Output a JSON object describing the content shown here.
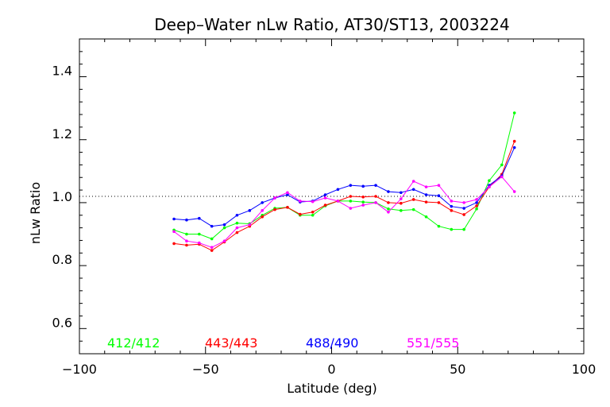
{
  "chart_data": {
    "type": "line",
    "title": "Deep–Water nLw Ratio, AT30/ST13, 2003224",
    "xlabel": "Latitude (deg)",
    "ylabel": "nLw Ratio",
    "xlim": [
      -100,
      100
    ],
    "ylim": [
      0.5,
      1.5
    ],
    "xticks": [
      -100,
      -50,
      0,
      50,
      100
    ],
    "xtick_labels": [
      "−100",
      "−50",
      "0",
      "50",
      "100"
    ],
    "yticks": [
      0.6,
      0.8,
      1.0,
      1.2,
      1.4
    ],
    "ytick_labels": [
      "0.6",
      "0.8",
      "1.0",
      "1.2",
      "1.4"
    ],
    "reference_line": 1.0,
    "legend_placement": "bottom",
    "series": [
      {
        "name": "412/412",
        "color": "#00ff00",
        "x": [
          -62.5,
          -57.5,
          -52.5,
          -47.5,
          -42.5,
          -37.5,
          -32.5,
          -27.5,
          -22.5,
          -17.5,
          -12.5,
          -7.5,
          -2.5,
          2.5,
          7.5,
          12.5,
          17.5,
          22.5,
          27.5,
          32.5,
          37.5,
          42.5,
          47.5,
          52.5,
          57.5,
          62.5,
          67.5,
          72.5
        ],
        "y": [
          0.893,
          0.88,
          0.88,
          0.865,
          0.9,
          0.915,
          0.913,
          0.94,
          0.962,
          0.965,
          0.94,
          0.94,
          0.97,
          0.985,
          0.985,
          0.982,
          0.98,
          0.96,
          0.955,
          0.958,
          0.935,
          0.905,
          0.895,
          0.895,
          0.96,
          1.05,
          1.1,
          1.265
        ]
      },
      {
        "name": "443/443",
        "color": "#ff0000",
        "x": [
          -62.5,
          -57.5,
          -52.5,
          -47.5,
          -42.5,
          -37.5,
          -32.5,
          -27.5,
          -22.5,
          -17.5,
          -12.5,
          -7.5,
          -2.5,
          2.5,
          7.5,
          12.5,
          17.5,
          22.5,
          27.5,
          32.5,
          37.5,
          42.5,
          47.5,
          52.5,
          57.5,
          62.5,
          67.5,
          72.5
        ],
        "y": [
          0.85,
          0.845,
          0.848,
          0.828,
          0.855,
          0.885,
          0.905,
          0.935,
          0.958,
          0.965,
          0.943,
          0.95,
          0.972,
          0.985,
          1.0,
          0.998,
          1.0,
          0.98,
          0.978,
          0.99,
          0.982,
          0.98,
          0.955,
          0.942,
          0.97,
          1.03,
          1.07,
          1.175
        ]
      },
      {
        "name": "488/490",
        "color": "#0000ff",
        "x": [
          -62.5,
          -57.5,
          -52.5,
          -47.5,
          -42.5,
          -37.5,
          -32.5,
          -27.5,
          -22.5,
          -17.5,
          -12.5,
          -7.5,
          -2.5,
          2.5,
          7.5,
          12.5,
          17.5,
          22.5,
          27.5,
          32.5,
          37.5,
          42.5,
          47.5,
          52.5,
          57.5,
          62.5,
          67.5,
          72.5
        ],
        "y": [
          0.928,
          0.925,
          0.93,
          0.905,
          0.91,
          0.94,
          0.955,
          0.98,
          0.995,
          1.005,
          0.982,
          0.985,
          1.005,
          1.022,
          1.035,
          1.032,
          1.035,
          1.015,
          1.012,
          1.022,
          1.005,
          1.002,
          0.968,
          0.962,
          0.98,
          1.035,
          1.065,
          1.155
        ]
      },
      {
        "name": "551/555",
        "color": "#ff00ff",
        "x": [
          -62.5,
          -57.5,
          -52.5,
          -47.5,
          -42.5,
          -37.5,
          -32.5,
          -27.5,
          -22.5,
          -17.5,
          -12.5,
          -7.5,
          -2.5,
          2.5,
          7.5,
          12.5,
          17.5,
          22.5,
          27.5,
          32.5,
          37.5,
          42.5,
          47.5,
          52.5,
          57.5,
          62.5,
          67.5,
          72.5
        ],
        "y": [
          0.888,
          0.858,
          0.852,
          0.838,
          0.858,
          0.9,
          0.91,
          0.955,
          0.995,
          1.012,
          0.985,
          0.983,
          0.995,
          0.985,
          0.962,
          0.972,
          0.98,
          0.95,
          0.992,
          1.048,
          1.03,
          1.035,
          0.985,
          0.98,
          0.99,
          1.03,
          1.062,
          1.015
        ]
      }
    ]
  }
}
